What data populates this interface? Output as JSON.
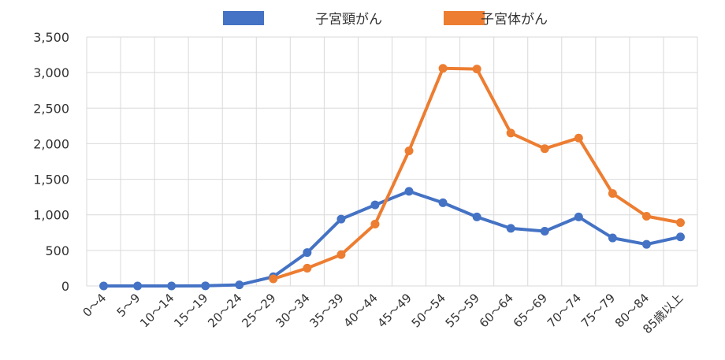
{
  "chart_data": {
    "type": "line",
    "title": "",
    "xlabel": "",
    "ylabel": "",
    "categories": [
      "0～4",
      "5～9",
      "10～14",
      "15～19",
      "20～24",
      "25～29",
      "30～34",
      "35～39",
      "40～44",
      "45～49",
      "50～54",
      "55～59",
      "60～64",
      "65～69",
      "70～74",
      "75～79",
      "80～84",
      "85歳以上"
    ],
    "ylim": [
      0,
      3500
    ],
    "yticks": [
      "0",
      "500",
      "1,000",
      "1,500",
      "2,000",
      "2,500",
      "3,000",
      "3,500"
    ],
    "ytick_values": [
      0,
      500,
      1000,
      1500,
      2000,
      2500,
      3000,
      3500
    ],
    "grid": true,
    "legend_position": "top",
    "series": [
      {
        "name": "子宮頸がん",
        "color": "#4472c4",
        "values": [
          0,
          0,
          0,
          2,
          15,
          130,
          470,
          940,
          1140,
          1330,
          1170,
          970,
          810,
          770,
          970,
          675,
          585,
          690
        ]
      },
      {
        "name": "子宮体がん",
        "color": "#ed7d31",
        "values": [
          null,
          null,
          null,
          null,
          null,
          100,
          250,
          440,
          870,
          1900,
          3060,
          3050,
          2150,
          1930,
          2080,
          1300,
          980,
          890
        ]
      }
    ]
  }
}
